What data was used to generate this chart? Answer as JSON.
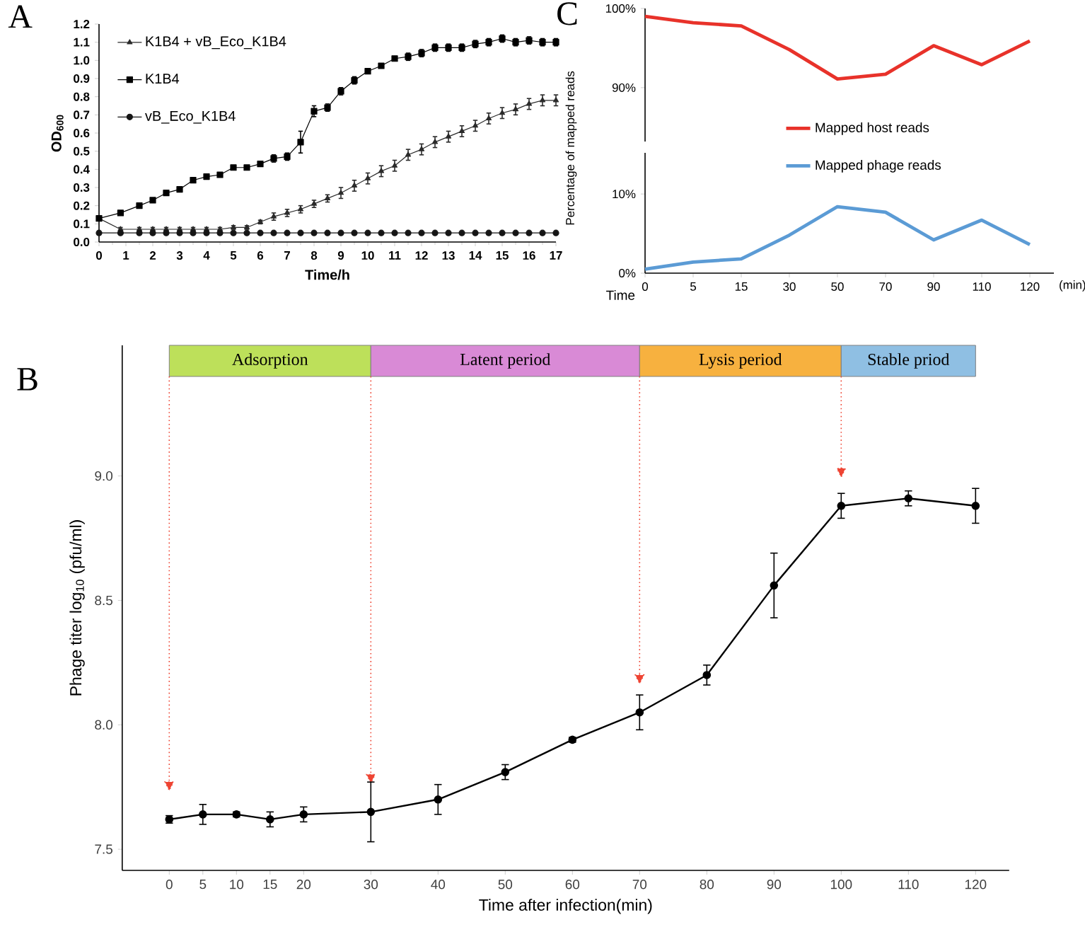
{
  "chart_data": [
    {
      "type": "line",
      "title": "A",
      "xlabel": "Time/h",
      "ylabel": "OD$_{600}$",
      "x": [
        0,
        0.8,
        1.5,
        2,
        2.5,
        3,
        3.5,
        4,
        4.5,
        5,
        5.5,
        6,
        6.5,
        7,
        7.5,
        8,
        8.5,
        9,
        9.5,
        10,
        10.5,
        11,
        11.5,
        12,
        12.5,
        13,
        13.5,
        14,
        14.5,
        15,
        15.5,
        16,
        16.5,
        17
      ],
      "series": [
        {
          "name": "K1B4 + vB_Eco_K1B4",
          "color": "#2a2a2a",
          "marker": "triangle",
          "values": [
            0.13,
            0.07,
            0.07,
            0.07,
            0.07,
            0.07,
            0.07,
            0.07,
            0.07,
            0.08,
            0.08,
            0.11,
            0.14,
            0.16,
            0.18,
            0.21,
            0.24,
            0.27,
            0.31,
            0.35,
            0.39,
            0.42,
            0.48,
            0.51,
            0.55,
            0.58,
            0.61,
            0.64,
            0.68,
            0.71,
            0.73,
            0.76,
            0.78,
            0.78
          ],
          "errors": [
            0.01,
            0.01,
            0.01,
            0.01,
            0.01,
            0.01,
            0.01,
            0.01,
            0.01,
            0.01,
            0.01,
            0.01,
            0.02,
            0.02,
            0.02,
            0.02,
            0.02,
            0.03,
            0.03,
            0.03,
            0.03,
            0.03,
            0.03,
            0.03,
            0.03,
            0.03,
            0.03,
            0.03,
            0.03,
            0.03,
            0.03,
            0.03,
            0.03,
            0.03
          ]
        },
        {
          "name": "K1B4",
          "color": "#000000",
          "marker": "square",
          "values": [
            0.13,
            0.16,
            0.2,
            0.23,
            0.27,
            0.29,
            0.34,
            0.36,
            0.37,
            0.41,
            0.41,
            0.43,
            0.46,
            0.47,
            0.55,
            0.72,
            0.74,
            0.83,
            0.89,
            0.94,
            0.97,
            1.01,
            1.02,
            1.04,
            1.07,
            1.07,
            1.07,
            1.09,
            1.1,
            1.12,
            1.1,
            1.11,
            1.1,
            1.1
          ],
          "errors": [
            0.01,
            0.01,
            0.01,
            0.01,
            0.01,
            0.01,
            0.01,
            0.01,
            0.01,
            0.01,
            0.01,
            0.01,
            0.02,
            0.02,
            0.06,
            0.03,
            0.02,
            0.02,
            0.02,
            0.01,
            0.01,
            0.01,
            0.02,
            0.02,
            0.02,
            0.02,
            0.02,
            0.02,
            0.02,
            0.02,
            0.02,
            0.02,
            0.02,
            0.02
          ]
        },
        {
          "name": "vB_Eco_K1B4",
          "color": "#151515",
          "marker": "circle",
          "values": [
            0.05,
            0.05,
            0.05,
            0.05,
            0.05,
            0.05,
            0.05,
            0.05,
            0.05,
            0.05,
            0.05,
            0.05,
            0.05,
            0.05,
            0.05,
            0.05,
            0.05,
            0.05,
            0.05,
            0.05,
            0.05,
            0.05,
            0.05,
            0.05,
            0.05,
            0.05,
            0.05,
            0.05,
            0.05,
            0.05,
            0.05,
            0.05,
            0.05,
            0.05
          ]
        }
      ],
      "xlim": [
        0,
        17
      ],
      "ylim": [
        0,
        1.2
      ],
      "xticks": [
        0,
        1,
        2,
        3,
        4,
        5,
        6,
        7,
        8,
        9,
        10,
        11,
        12,
        13,
        14,
        15,
        16,
        17
      ],
      "yticks": [
        {
          "value": 0,
          "label": "0.0"
        },
        {
          "value": 0.1,
          "label": "0.1"
        },
        {
          "value": 0.2,
          "label": "0.2"
        },
        {
          "value": 0.3,
          "label": "0.3"
        },
        {
          "value": 0.4,
          "label": "0.4"
        },
        {
          "value": 0.5,
          "label": "0.5"
        },
        {
          "value": 0.6,
          "label": "0.6"
        },
        {
          "value": 0.7,
          "label": "0.7"
        },
        {
          "value": 0.8,
          "label": "0.8"
        },
        {
          "value": 0.9,
          "label": "0.9"
        },
        {
          "value": 1,
          "label": "1.0"
        },
        {
          "value": 1.1,
          "label": "1.1"
        },
        {
          "value": 1.2,
          "label": "1.2"
        }
      ],
      "legend": "top left"
    },
    {
      "type": "line",
      "title": "C",
      "ylabel": "Percentage of mapped reads",
      "categories": [
        "0",
        "5",
        "15",
        "30",
        "50",
        "70",
        "90",
        "110",
        "120"
      ],
      "series": [
        {
          "name": "Mapped host reads",
          "color": "#e8322a",
          "values": [
            99.0,
            98.2,
            97.8,
            94.8,
            91.1,
            91.7,
            95.3,
            92.9,
            95.9
          ]
        }
      ],
      "ylim": [
        83.2,
        100
      ],
      "yticks": [
        {
          "value": 90,
          "label": "90%"
        },
        {
          "value": 100,
          "label": "100%"
        }
      ],
      "legend": "bottom",
      "tick_labels": "y"
    },
    {
      "type": "line",
      "xlabel": "Time",
      "categories": [
        "0",
        "5",
        "15",
        "30",
        "50",
        "70",
        "90",
        "110",
        "120"
      ],
      "series": [
        {
          "name": "Mapped phage reads",
          "color": "#5b9bd5",
          "values": [
            0.5,
            1.4,
            1.8,
            4.8,
            8.4,
            7.7,
            4.2,
            6.7,
            3.6
          ]
        }
      ],
      "ylim": [
        0,
        15.2
      ],
      "yticks": [
        {
          "value": 0,
          "label": "0%"
        },
        {
          "value": 10,
          "label": "10%"
        }
      ],
      "legend": "top",
      "annotations": [
        "(min)"
      ]
    },
    {
      "type": "line",
      "title": "B",
      "xlabel": "Time after infection(min)",
      "ylabel": "Phage titer log$_{10}$ (pfu/ml)",
      "x": [
        0,
        5,
        10,
        15,
        20,
        30,
        40,
        50,
        60,
        70,
        80,
        90,
        100,
        110,
        120
      ],
      "series": [
        {
          "color": "#000000",
          "values": [
            7.62,
            7.64,
            7.64,
            7.62,
            7.64,
            7.65,
            7.7,
            7.81,
            7.94,
            8.05,
            8.2,
            8.56,
            8.88,
            8.91,
            8.88
          ],
          "errors": [
            0.015,
            0.04,
            0.01,
            0.03,
            0.03,
            0.12,
            0.06,
            0.03,
            0.01,
            0.07,
            0.04,
            0.13,
            0.05,
            0.03,
            0.07
          ]
        }
      ],
      "marker": "circle",
      "xlim": [
        -7,
        125
      ],
      "ylim": [
        7.415,
        9.525
      ],
      "xticks": [
        0,
        5,
        10,
        15,
        20,
        30,
        40,
        50,
        60,
        70,
        80,
        90,
        100,
        110,
        120
      ],
      "yticks": [
        {
          "value": 7.5,
          "label": "7.5"
        },
        {
          "value": 8,
          "label": "8.0"
        },
        {
          "value": 8.5,
          "label": "8.5"
        },
        {
          "value": 9,
          "label": "9.0"
        }
      ],
      "ref_lines": [
        {
          "axis": "x",
          "value": 0,
          "color": "#ee4433",
          "line_style": "dotted"
        },
        {
          "axis": "x",
          "value": 30,
          "color": "#ee4433",
          "line_style": "dotted"
        },
        {
          "axis": "x",
          "value": 70,
          "color": "#ee4433",
          "line_style": "dotted"
        },
        {
          "axis": "x",
          "value": 100,
          "color": "#ee4433",
          "line_style": "dotted"
        }
      ],
      "bands": [
        {
          "axis": "x",
          "from": 0,
          "to": 30,
          "label": "Adsorption",
          "color": "#bde05a"
        },
        {
          "axis": "x",
          "from": 30,
          "to": 70,
          "label": "Latent period",
          "color": "#d98ad6"
        },
        {
          "axis": "x",
          "from": 70,
          "to": 100,
          "label": "Lysis period",
          "color": "#f7b13f"
        },
        {
          "axis": "x",
          "from": 100,
          "to": 120,
          "label": "Stable priod",
          "color": "#8fbfe3"
        }
      ]
    }
  ]
}
